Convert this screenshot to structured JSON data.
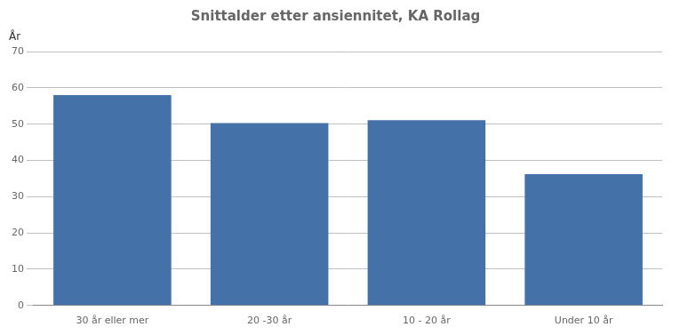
{
  "chart_data": {
    "type": "bar",
    "title": "Snittalder etter ansiennitet, KA Rollag",
    "ylabel": "År",
    "categories": [
      "30 år eller mer",
      "20 -30 år",
      "10 - 20 år",
      "Under 10 år"
    ],
    "values": [
      58.0,
      50.3,
      51.1,
      36.2
    ],
    "color": "#4472a8",
    "ylim": [
      0,
      70
    ],
    "yticks": [
      0,
      10,
      20,
      30,
      40,
      50,
      60,
      70
    ],
    "grid": true
  }
}
